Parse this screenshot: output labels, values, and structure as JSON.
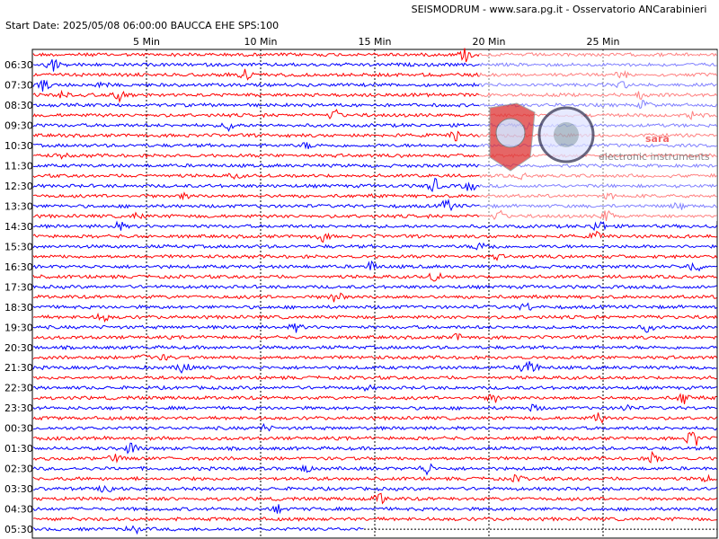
{
  "header": {
    "title": "SEISMODRUM - www.sara.pg.it - Osservatorio ANCarabinieri",
    "start_info": "Start Date: 2025/05/08 06:00:00 BAUCCA  EHE  SPS:100"
  },
  "x_labels": [
    "5 Min",
    "10 Min",
    "15 Min",
    "20 Min",
    "25 Min"
  ],
  "time_labels": [
    "06:30",
    "07:30",
    "08:30",
    "09:30",
    "10:30",
    "11:30",
    "12:30",
    "13:30",
    "14:30",
    "15:30",
    "16:30",
    "17:30",
    "18:30",
    "19:30",
    "20:30",
    "21:30",
    "22:30",
    "23:30",
    "00:30",
    "01:30",
    "02:30",
    "03:30",
    "04:30",
    "05:30"
  ],
  "logo": {
    "brand": "sara",
    "tagline": "electronic instruments"
  }
}
